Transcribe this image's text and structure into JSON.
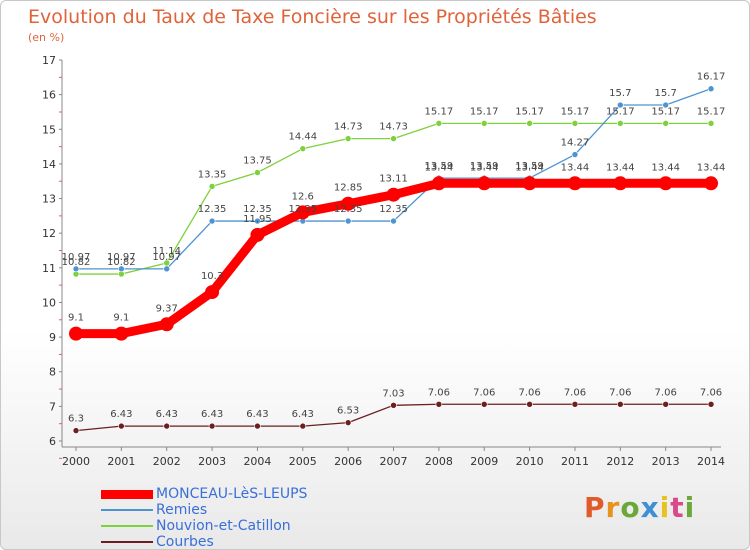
{
  "chart_data": {
    "type": "line",
    "title": "Evolution du Taux de Taxe Foncière sur les Propriétés Bâties",
    "subtitle": "(en %)",
    "xlabel": "",
    "ylabel": "(en %)",
    "ylim": [
      6,
      17
    ],
    "yticks": [
      "6",
      "7",
      "8",
      "9",
      "10",
      "11",
      "12",
      "13",
      "14",
      "15",
      "16",
      "17"
    ],
    "categories": [
      "2000",
      "2001",
      "2002",
      "2003",
      "2004",
      "2005",
      "2006",
      "2007",
      "2008",
      "2009",
      "2010",
      "2011",
      "2012",
      "2013",
      "2014"
    ],
    "grid": false,
    "legend_position": "bottom-left",
    "series": [
      {
        "name": "MONCEAU-LèS-LEUPS",
        "color": "#ff0000",
        "values": [
          9.1,
          9.1,
          9.37,
          10.3,
          11.95,
          12.6,
          12.85,
          13.11,
          13.44,
          13.44,
          13.44,
          13.44,
          13.44,
          13.44,
          13.44
        ],
        "labels": [
          "9.1",
          "9.1",
          "9.37",
          "10.3",
          "11.95",
          "12.6",
          "12.85",
          "13.11",
          "13.44",
          "13.44",
          "13.44",
          "13.44",
          "13.44",
          "13.44",
          "13.44"
        ]
      },
      {
        "name": "Remies",
        "color": "#4d94d1",
        "values": [
          10.97,
          10.97,
          10.97,
          12.35,
          12.35,
          12.35,
          12.35,
          12.35,
          13.59,
          13.59,
          13.59,
          14.27,
          15.7,
          15.7,
          16.17
        ],
        "labels": [
          "10.97",
          "10.97",
          "10.97",
          "12.35",
          "12.35",
          "12.35",
          "12.35",
          "12.35",
          "13.59",
          "13.59",
          "13.59",
          "14.27",
          "15.7",
          "15.7",
          "16.17"
        ]
      },
      {
        "name": "Nouvion-et-Catillon",
        "color": "#7dd13a",
        "values": [
          10.82,
          10.82,
          11.14,
          13.35,
          13.75,
          14.44,
          14.73,
          14.73,
          15.17,
          15.17,
          15.17,
          15.17,
          15.17,
          15.17,
          15.17
        ],
        "labels": [
          "10.82",
          "10.82",
          "11.14",
          "13.35",
          "13.75",
          "14.44",
          "14.73",
          "14.73",
          "15.17",
          "15.17",
          "15.17",
          "15.17",
          "15.17",
          "15.17",
          "15.17"
        ]
      },
      {
        "name": "Courbes",
        "color": "#6b1f1f",
        "values": [
          6.3,
          6.43,
          6.43,
          6.43,
          6.43,
          6.43,
          6.53,
          7.03,
          7.06,
          7.06,
          7.06,
          7.06,
          7.06,
          7.06,
          7.06
        ],
        "labels": [
          "6.3",
          "6.43",
          "6.43",
          "6.43",
          "6.43",
          "6.43",
          "6.53",
          "7.03",
          "7.06",
          "7.06",
          "7.06",
          "7.06",
          "7.06",
          "7.06",
          "7.06"
        ]
      }
    ]
  },
  "legend": {
    "items": [
      {
        "label": "MONCEAU-LèS-LEUPS",
        "color": "#ff0000",
        "text_color": "#3a6fd8"
      },
      {
        "label": "Remies",
        "color": "#4d94d1",
        "text_color": "#3a6fd8"
      },
      {
        "label": "Nouvion-et-Catillon",
        "color": "#7dd13a",
        "text_color": "#3a6fd8"
      },
      {
        "label": "Courbes",
        "color": "#6b1f1f",
        "text_color": "#3a6fd8"
      }
    ]
  },
  "logo": {
    "letters": [
      "P",
      "r",
      "o",
      "x",
      "i",
      "t",
      "i"
    ],
    "colors": [
      "#e05a2a",
      "#e8921f",
      "#6aa83a",
      "#3f8fd6",
      "#e8c21f",
      "#d84a8a",
      "#6aa83a"
    ]
  }
}
